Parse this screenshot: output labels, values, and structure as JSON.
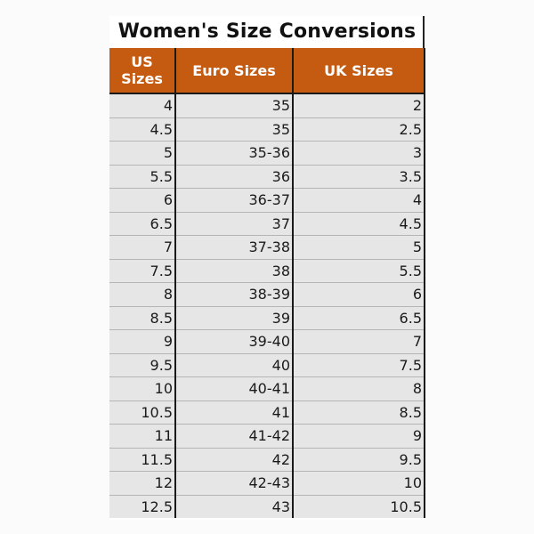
{
  "title": "Women's Size Conversions",
  "table": {
    "headers": [
      "US Sizes",
      "Euro Sizes",
      "UK Sizes"
    ],
    "rows": [
      [
        "4",
        "35",
        "2"
      ],
      [
        "4.5",
        "35",
        "2.5"
      ],
      [
        "5",
        "35-36",
        "3"
      ],
      [
        "5.5",
        "36",
        "3.5"
      ],
      [
        "6",
        "36-37",
        "4"
      ],
      [
        "6.5",
        "37",
        "4.5"
      ],
      [
        "7",
        "37-38",
        "5"
      ],
      [
        "7.5",
        "38",
        "5.5"
      ],
      [
        "8",
        "38-39",
        "6"
      ],
      [
        "8.5",
        "39",
        "6.5"
      ],
      [
        "9",
        "39-40",
        "7"
      ],
      [
        "9.5",
        "40",
        "7.5"
      ],
      [
        "10",
        "40-41",
        "8"
      ],
      [
        "10.5",
        "41",
        "8.5"
      ],
      [
        "11",
        "41-42",
        "9"
      ],
      [
        "11.5",
        "42",
        "9.5"
      ],
      [
        "12",
        "42-43",
        "10"
      ],
      [
        "12.5",
        "43",
        "10.5"
      ]
    ]
  },
  "colors": {
    "header_bg": "#c55a11",
    "header_text": "#ffffff",
    "cell_bg": "#e6e6e6"
  }
}
